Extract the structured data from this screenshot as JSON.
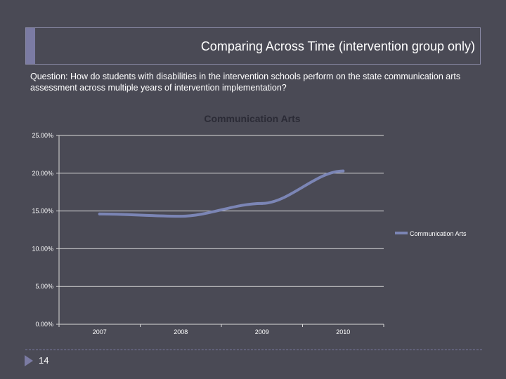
{
  "slide": {
    "title": "Comparing Across Time (intervention group only)",
    "question": "Question: How do students with disabilities in the intervention schools perform on the state communication arts assessment across multiple years of intervention implementation?",
    "page_number": "14"
  },
  "colors": {
    "background": "#4a4a55",
    "accent": "#7b7ba3",
    "series": "#7b85b5"
  },
  "chart_data": {
    "type": "line",
    "title": "Communication Arts",
    "categories": [
      "2007",
      "2008",
      "2009",
      "2010"
    ],
    "series": [
      {
        "name": "Communication Arts",
        "values": [
          14.6,
          14.3,
          16.0,
          20.3
        ]
      }
    ],
    "yticks": [
      "0.00%",
      "5.00%",
      "10.00%",
      "15.00%",
      "20.00%",
      "25.00%"
    ],
    "ylim": [
      0,
      25
    ],
    "grid": true,
    "legend_position": "right",
    "y_unit": "%"
  }
}
